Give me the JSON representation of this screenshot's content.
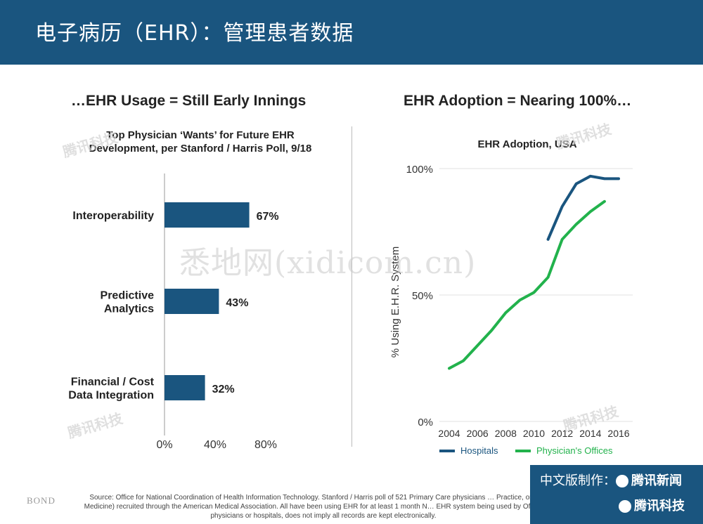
{
  "header": {
    "title": "电子病历（EHR）：管理患者数据"
  },
  "left_panel": {
    "title": "…EHR Usage = Still Early Innings"
  },
  "right_panel": {
    "title": "EHR Adoption = Nearing 100%…"
  },
  "watermark": {
    "text": "悉地网(xidicom.cn)",
    "brand": "腾讯科技"
  },
  "footer": {
    "logo": "BOND",
    "source": "Source: Office for National Coordination of Health Information Technology. Stanford / Harris poll of 521 Primary Care physicians … Practice, or Internal Medicine) recruited through the American Medical Association. All have been using EHR for at least 1 month N… EHR system being used by Office-based physicians or hospitals, does not imply all records are kept electronically.",
    "credit_line1": "中文版制作：",
    "credit_brand1": "腾讯新闻",
    "credit_brand2": "腾讯科技"
  },
  "colors": {
    "header_bg": "#1a557f",
    "bar": "#1a557f",
    "hospitals": "#1a557f",
    "offices": "#22b24c"
  },
  "chart_data": [
    {
      "type": "bar",
      "orientation": "horizontal",
      "title": "Top Physician ‘Wants’ for Future EHR Development, per Stanford / Harris Poll, 9/18",
      "categories": [
        "Interoperability",
        "Predictive Analytics",
        "Financial / Cost Data Integration"
      ],
      "values": [
        67,
        43,
        32
      ],
      "value_labels": [
        "67%",
        "43%",
        "32%"
      ],
      "xlim": [
        0,
        80
      ],
      "x_ticks": [
        "0%",
        "40%",
        "80%"
      ],
      "grid": false
    },
    {
      "type": "line",
      "title": "EHR Adoption, USA",
      "ylabel": "% Using E.H.R. System",
      "ylim": [
        0,
        100
      ],
      "y_ticks": [
        "0%",
        "50%",
        "100%"
      ],
      "xlim": [
        2004,
        2016
      ],
      "x_ticks": [
        "2004",
        "2006",
        "2008",
        "2010",
        "2012",
        "2014",
        "2016"
      ],
      "grid": "horizontal",
      "legend": "bottom",
      "series": [
        {
          "name": "Hospitals",
          "x": [
            2011,
            2012,
            2013,
            2014,
            2015,
            2016
          ],
          "values": [
            72,
            85,
            94,
            97,
            96,
            96
          ]
        },
        {
          "name": "Physician's Offices",
          "x": [
            2004,
            2005,
            2006,
            2007,
            2008,
            2009,
            2010,
            2011,
            2012,
            2013,
            2014,
            2015
          ],
          "values": [
            21,
            24,
            30,
            36,
            43,
            48,
            51,
            57,
            72,
            78,
            83,
            87
          ]
        }
      ]
    }
  ]
}
